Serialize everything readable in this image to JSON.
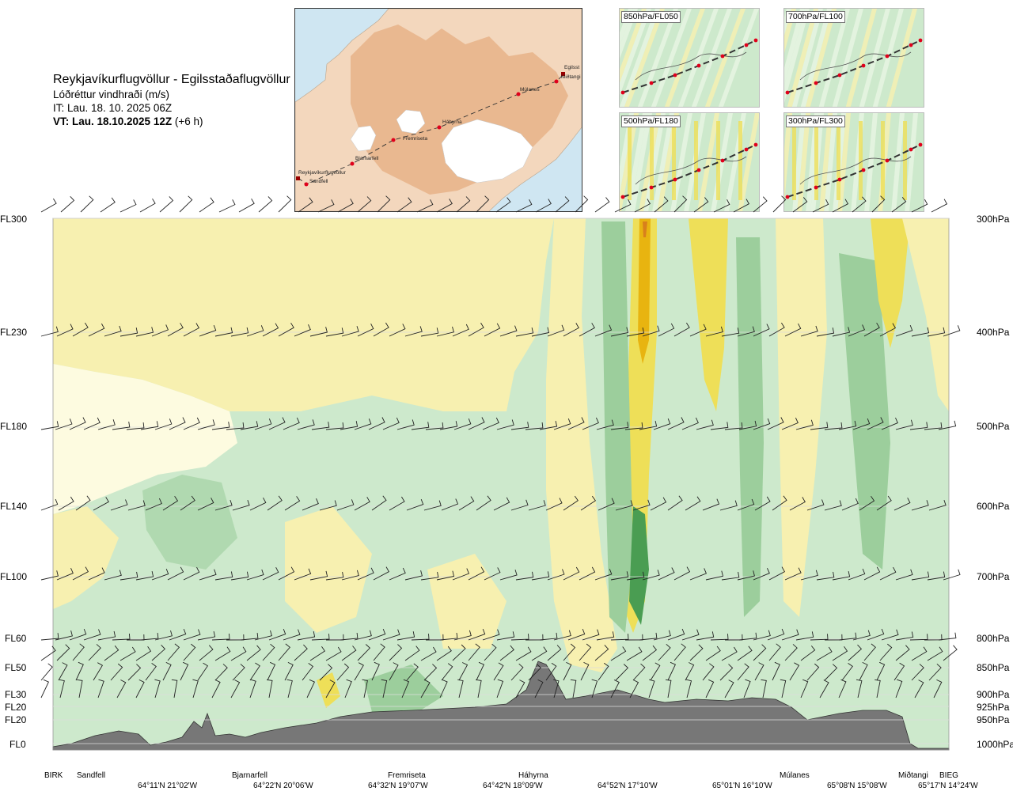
{
  "header": {
    "route_title": "Reykjavíkurflugvöllur - Egilsstaðaflugvöllur",
    "parameter": "Lóðréttur vindhraði (m/s)",
    "issue_time": "IT: Lau. 18. 10. 2025 06Z",
    "valid_time_bold": "VT: Lau. 18.10.2025 12Z",
    "valid_time_offset": "(+6 h)"
  },
  "route_map": {
    "waypoints": [
      "Reykjavíkurflugvöllur",
      "Sandfell",
      "Bjarnarfell",
      "Fremriseta",
      "Háhyrna",
      "Múlanes",
      "Miðtangi",
      "Egilsst"
    ],
    "colors": {
      "sea": "#cfe6f2",
      "land": "#f3d7bd",
      "terrain": "#e2a77a",
      "glacier": "#ffffff",
      "waypoint": "#e0001b",
      "route": "#333333"
    }
  },
  "insets": [
    {
      "label": "850hPa/FL050"
    },
    {
      "label": "700hPa/FL100"
    },
    {
      "label": "500hPa/FL180"
    },
    {
      "label": "300hPa/FL300"
    }
  ],
  "levels": [
    {
      "fl": "FL300",
      "hpa": "300hPa"
    },
    {
      "fl": "FL230",
      "hpa": "400hPa"
    },
    {
      "fl": "FL180",
      "hpa": "500hPa"
    },
    {
      "fl": "FL140",
      "hpa": "600hPa"
    },
    {
      "fl": "FL100",
      "hpa": "700hPa"
    },
    {
      "fl": "FL60",
      "hpa": "800hPa"
    },
    {
      "fl": "FL50",
      "hpa": "850hPa"
    },
    {
      "fl": "FL30",
      "hpa": "900hPa"
    },
    {
      "fl": "FL20",
      "hpa": "925hPa"
    },
    {
      "fl": "FL20",
      "hpa": "950hPa"
    },
    {
      "fl": "FL0",
      "hpa": "1000hPa"
    }
  ],
  "x_axis": {
    "locations": [
      "BIRK",
      "Sandfell",
      "Bjarnarfell",
      "Fremriseta",
      "Háhyrna",
      "Múlanes",
      "Miðtangi",
      "BIEG"
    ],
    "coordinates": [
      "64°11'N 21°02'W",
      "64°22'N 20°06'W",
      "64°32'N 19°07'W",
      "64°42'N 18°09'W",
      "64°52'N 17°10'W",
      "65°01'N 16°10'W",
      "65°08'N 15°08'W",
      "65°17'N 14°24'W"
    ]
  },
  "colors": {
    "down_light": "#e8f5e4",
    "down_mid": "#cde9cc",
    "down_strong": "#9cce9c",
    "down_max": "#4a9d52",
    "up_light": "#fdfbe0",
    "up_mid": "#f7f0b0",
    "up_strong": "#eedf58",
    "up_max": "#e8b410",
    "up_peak": "#d8801c",
    "terrain": "#777777"
  }
}
